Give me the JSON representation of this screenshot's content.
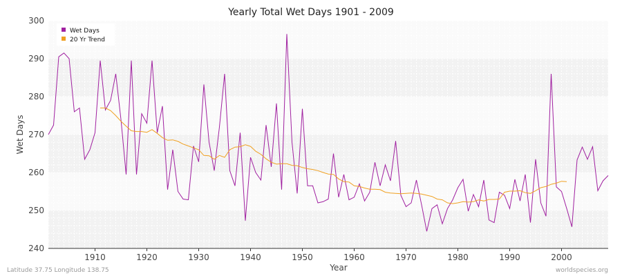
{
  "chart_data": {
    "type": "line",
    "title": "Yearly Total Wet Days 1901 - 2009",
    "xlabel": "Year",
    "ylabel": "Wet Days",
    "xlim": [
      1901,
      2009
    ],
    "ylim": [
      240,
      300
    ],
    "xticks": [
      1910,
      1920,
      1930,
      1940,
      1950,
      1960,
      1970,
      1980,
      1990,
      2000
    ],
    "yticks": [
      240,
      250,
      260,
      270,
      280,
      290,
      300
    ],
    "grid": true,
    "legend_position": "top-left",
    "series": [
      {
        "name": "Wet Days",
        "color": "#a020a0",
        "x_start": 1901,
        "values": [
          270.0,
          272.5,
          290.5,
          291.5,
          290.0,
          276.0,
          277.0,
          263.5,
          266.0,
          270.5,
          289.5,
          276.5,
          279.0,
          286.0,
          274.0,
          259.5,
          289.5,
          259.5,
          275.5,
          273.0,
          289.5,
          270.5,
          277.5,
          255.5,
          266.0,
          255.0,
          253.0,
          252.8,
          267.0,
          262.8,
          283.2,
          268.0,
          260.5,
          272.0,
          286.0,
          260.5,
          256.5,
          270.5,
          247.3,
          264.0,
          260.0,
          258.0,
          272.5,
          261.5,
          278.2,
          255.5,
          296.5,
          268.0,
          254.5,
          276.8,
          256.5,
          256.5,
          252.0,
          252.3,
          253.0,
          265.0,
          253.5,
          259.5,
          252.8,
          253.5,
          257.0,
          252.5,
          254.8,
          262.7,
          256.5,
          262.0,
          257.8,
          268.3,
          254.0,
          251.0,
          252.0,
          258.0,
          251.5,
          244.5,
          250.5,
          251.5,
          246.5,
          250.5,
          252.8,
          256.0,
          258.2,
          249.8,
          254.2,
          251.0,
          258.0,
          247.5,
          246.8,
          254.8,
          254.0,
          250.5,
          258.2,
          252.5,
          259.5,
          246.8,
          263.5,
          252.0,
          248.5,
          286.0,
          256.2,
          255.0,
          250.5,
          245.7,
          263.3,
          266.7,
          263.5,
          266.8,
          255.2,
          257.8,
          259.2
        ]
      },
      {
        "name": "20 Yr Trend",
        "color": "#f0a020",
        "x_start": 1911,
        "values": [
          277.0,
          277.0,
          276.3,
          275.0,
          273.5,
          272.2,
          271.0,
          270.8,
          270.8,
          270.6,
          271.3,
          270.3,
          269.2,
          268.5,
          268.6,
          268.2,
          267.5,
          267.0,
          266.5,
          266.0,
          264.5,
          264.4,
          263.5,
          264.5,
          264.0,
          266.0,
          266.7,
          266.8,
          267.3,
          266.9,
          265.6,
          264.8,
          263.6,
          262.7,
          262.2,
          262.3,
          262.3,
          261.9,
          261.8,
          261.3,
          261.0,
          260.8,
          260.5,
          260.0,
          259.6,
          259.5,
          258.3,
          257.6,
          257.5,
          256.5,
          256.3,
          255.9,
          255.6,
          255.6,
          255.5,
          254.8,
          254.6,
          254.5,
          254.4,
          254.5,
          254.6,
          254.5,
          254.3,
          254.0,
          253.7,
          253.0,
          252.8,
          252.0,
          251.8,
          252.0,
          252.3,
          252.2,
          252.3,
          252.8,
          252.5,
          252.9,
          252.9,
          253.0,
          254.8,
          255.1,
          255.1,
          255.2,
          254.7,
          254.5,
          255.2,
          256.0,
          256.3,
          256.9,
          257.2,
          257.7,
          257.6
        ]
      }
    ]
  },
  "footer": {
    "location": "Latitude 37.75 Longitude 138.75",
    "source": "worldspecies.org"
  }
}
